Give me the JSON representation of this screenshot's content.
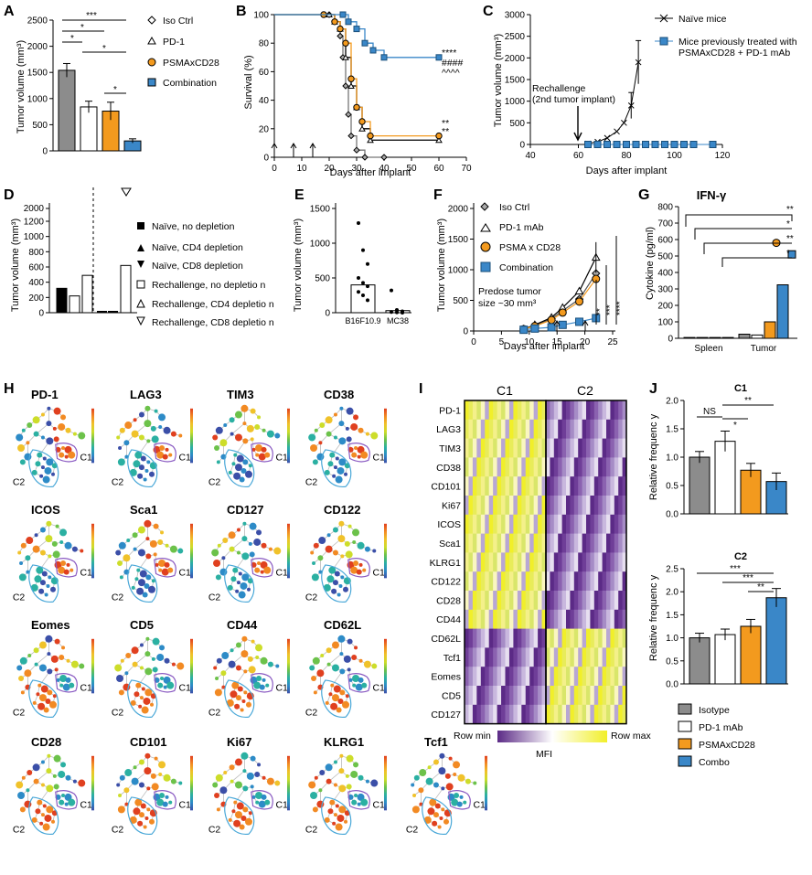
{
  "panels": {
    "A": {
      "letter": "A",
      "ylabel": "Tumor volume (mm³)",
      "yticks": [
        "0",
        "500",
        "1000",
        "1500",
        "2000",
        "2500"
      ],
      "legend": [
        "Iso Ctrl",
        "PD-1",
        "PSMAxCD28",
        "Combination"
      ],
      "sig": [
        "***",
        "*",
        "*",
        "*",
        "*"
      ]
    },
    "B": {
      "letter": "B",
      "ylabel": "Survival (%)",
      "xlabel": "Days after implant",
      "xticks": [
        "0",
        "10",
        "20",
        "30",
        "40",
        "50",
        "60",
        "70"
      ],
      "yticks": [
        "0",
        "20",
        "40",
        "60",
        "80",
        "100"
      ],
      "sig": [
        "****",
        "####",
        "^^^^",
        "**",
        "**"
      ]
    },
    "C": {
      "letter": "C",
      "ylabel": "Tumor volume (mm³)",
      "xlabel": "Days after implant",
      "xticks": [
        "40",
        "60",
        "80",
        "100",
        "120"
      ],
      "yticks": [
        "0",
        "500",
        "1000",
        "1500",
        "2000",
        "2500",
        "3000"
      ],
      "legend": [
        "Naïve mice",
        "Mice previously treated with",
        "PSMAxCD28 + PD-1 mAb"
      ],
      "annotation": [
        "Rechallenge",
        "(2nd tumor implant)"
      ]
    },
    "D": {
      "letter": "D",
      "ylabel": "Tumor volume (mm³)",
      "yticks": [
        "0",
        "200",
        "400",
        "600",
        "800",
        "1000",
        "1200",
        "2000"
      ],
      "legend": [
        "Naïve, no depletion",
        "Naïve, CD4 depletion",
        "Naïve, CD8 depletion",
        "Rechallenge, no depletio n",
        "Rechallenge, CD4 depletio n",
        "Rechallenge, CD8 depletio n"
      ]
    },
    "E": {
      "letter": "E",
      "ylabel": "Tumor volume (mm³)",
      "yticks": [
        "0",
        "500",
        "1000",
        "1500"
      ],
      "categories": [
        "B16F10.9",
        "MC38"
      ]
    },
    "F": {
      "letter": "F",
      "ylabel": "Tumor volume (mm³)",
      "xlabel": "Days after implant",
      "xticks": [
        "0",
        "5",
        "10",
        "15",
        "20",
        "25"
      ],
      "yticks": [
        "0",
        "500",
        "1000",
        "1500",
        "2000"
      ],
      "legend": [
        "Iso Ctrl",
        "PD-1 mAb",
        "PSMA x CD28",
        "Combination"
      ],
      "annotation": [
        "Predose tumor",
        "size ~30 mm³"
      ],
      "sig": [
        "**",
        "***",
        "****"
      ]
    },
    "G": {
      "letter": "G",
      "title": "IFN-γ",
      "ylabel": "Cytokine (pg/ml)",
      "yticks": [
        "0",
        "100",
        "200",
        "300",
        "400",
        "500",
        "600",
        "700",
        "800"
      ],
      "categories": [
        "Spleen",
        "Tumor"
      ],
      "sig": [
        "**",
        "*",
        "**",
        "*"
      ]
    },
    "H": {
      "letter": "H",
      "markers": [
        "PD-1",
        "LAG3",
        "TIM3",
        "CD38",
        "ICOS",
        "Sca1",
        "CD127",
        "CD122",
        "Eomes",
        "CD5",
        "CD44",
        "CD62L",
        "CD28",
        "CD101",
        "Ki67",
        "KLRG1",
        "Tcf1"
      ],
      "cluster_labels": [
        "C1",
        "C2"
      ]
    },
    "I": {
      "letter": "I",
      "columns": [
        "C1",
        "C2"
      ],
      "rows": [
        "PD-1",
        "LAG3",
        "TIM3",
        "CD38",
        "CD101",
        "Ki67",
        "ICOS",
        "Sca1",
        "KLRG1",
        "CD122",
        "CD28",
        "CD44",
        "CD62L",
        "Tcf1",
        "Eomes",
        "CD5",
        "CD127"
      ],
      "scale_min": "Row min",
      "scale_max": "Row max",
      "scale_label": "MFI"
    },
    "J": {
      "letter": "J",
      "title_top": "C1",
      "title_bottom": "C2",
      "ylabel": "Relative frequenc y",
      "yticks_top": [
        "0.0",
        "0.5",
        "1.0",
        "1.5",
        "2.0"
      ],
      "yticks_bottom": [
        "0.0",
        "0.5",
        "1.0",
        "1.5",
        "2.0",
        "2.5"
      ],
      "sig_top": [
        "NS",
        "*",
        "**"
      ],
      "sig_bottom": [
        "***",
        "***",
        "**"
      ],
      "legend": [
        "Isotype",
        "PD-1 mAb",
        "PSMAxCD28",
        "Combo"
      ]
    }
  },
  "colors": {
    "isotype": "#8c8c8c",
    "pd1": "#ffffff",
    "psma": "#f39a1e",
    "combo": "#3a87c8",
    "purple": "#5b2a86",
    "yellow": "#f1ef2a"
  },
  "chart_data": [
    {
      "panel": "A",
      "type": "bar",
      "categories": [
        "Iso Ctrl",
        "PD-1",
        "PSMAxCD28",
        "Combination"
      ],
      "values": [
        1540,
        840,
        760,
        190
      ],
      "errors": [
        130,
        110,
        170,
        40
      ],
      "ylim": [
        0,
        2500
      ]
    },
    {
      "panel": "B",
      "type": "line",
      "xlabel": "Days after implant",
      "ylabel": "Survival (%)",
      "xlim": [
        0,
        70
      ],
      "ylim": [
        0,
        100
      ],
      "series": [
        {
          "name": "Iso Ctrl",
          "points": [
            [
              0,
              100
            ],
            [
              20,
              100
            ],
            [
              22,
              95
            ],
            [
              24,
              85
            ],
            [
              25,
              70
            ],
            [
              26,
              50
            ],
            [
              27,
              30
            ],
            [
              28,
              15
            ],
            [
              30,
              5
            ],
            [
              33,
              0
            ],
            [
              40,
              0
            ]
          ]
        },
        {
          "name": "PD-1",
          "points": [
            [
              0,
              100
            ],
            [
              20,
              100
            ],
            [
              22,
              95
            ],
            [
              24,
              90
            ],
            [
              26,
              70
            ],
            [
              28,
              50
            ],
            [
              30,
              35
            ],
            [
              32,
              20
            ],
            [
              35,
              12
            ],
            [
              60,
              12
            ]
          ]
        },
        {
          "name": "PSMAxCD28",
          "points": [
            [
              0,
              100
            ],
            [
              18,
              100
            ],
            [
              22,
              95
            ],
            [
              24,
              90
            ],
            [
              26,
              80
            ],
            [
              28,
              55
            ],
            [
              30,
              35
            ],
            [
              32,
              25
            ],
            [
              35,
              15
            ],
            [
              60,
              15
            ]
          ]
        },
        {
          "name": "Combination",
          "points": [
            [
              0,
              100
            ],
            [
              25,
              100
            ],
            [
              27,
              95
            ],
            [
              30,
              90
            ],
            [
              33,
              80
            ],
            [
              36,
              75
            ],
            [
              40,
              70
            ],
            [
              60,
              70
            ]
          ]
        }
      ]
    },
    {
      "panel": "C",
      "type": "line",
      "xlabel": "Days after implant",
      "ylabel": "Tumor volume (mm³)",
      "xlim": [
        40,
        120
      ],
      "ylim": [
        0,
        3000
      ],
      "series": [
        {
          "name": "Naïve mice",
          "points": [
            [
              64,
              20
            ],
            [
              68,
              60
            ],
            [
              72,
              150
            ],
            [
              76,
              300
            ],
            [
              79,
              500
            ],
            [
              82,
              900
            ],
            [
              85,
              1900
            ]
          ]
        },
        {
          "name": "Mice previously treated with PSMAxCD28 + PD-1 mAb",
          "points": [
            [
              64,
              0
            ],
            [
              68,
              0
            ],
            [
              72,
              0
            ],
            [
              76,
              0
            ],
            [
              80,
              0
            ],
            [
              84,
              0
            ],
            [
              88,
              0
            ],
            [
              92,
              0
            ],
            [
              96,
              0
            ],
            [
              100,
              0
            ],
            [
              104,
              0
            ],
            [
              108,
              0
            ],
            [
              116,
              0
            ]
          ]
        }
      ]
    },
    {
      "panel": "D",
      "type": "bar",
      "categories": [
        "Naïve, no depletion",
        "Naïve, CD4 depletion",
        "Naïve, CD8 depletion",
        "Rechallenge, no depletio n",
        "Rechallenge, CD4 depletio n",
        "Rechallenge, CD8 depletio n"
      ],
      "values": [
        320,
        220,
        490,
        0,
        0,
        620
      ]
    },
    {
      "panel": "E",
      "type": "bar",
      "categories": [
        "B16F10.9",
        "MC38"
      ],
      "values": [
        400,
        30
      ]
    },
    {
      "panel": "F",
      "type": "line",
      "xlabel": "Days after implant",
      "ylabel": "Tumor volume (mm³)",
      "xlim": [
        0,
        25
      ],
      "ylim": [
        0,
        2000
      ],
      "series": [
        {
          "name": "Iso Ctrl",
          "points": [
            [
              9,
              30
            ],
            [
              11,
              90
            ],
            [
              14,
              200
            ],
            [
              16,
              330
            ],
            [
              19,
              520
            ],
            [
              22,
              940
            ]
          ]
        },
        {
          "name": "PD-1 mAb",
          "points": [
            [
              9,
              30
            ],
            [
              11,
              100
            ],
            [
              14,
              220
            ],
            [
              16,
              380
            ],
            [
              19,
              650
            ],
            [
              22,
              1200
            ]
          ]
        },
        {
          "name": "PSMA x CD28",
          "points": [
            [
              9,
              30
            ],
            [
              11,
              80
            ],
            [
              14,
              180
            ],
            [
              16,
              300
            ],
            [
              19,
              480
            ],
            [
              22,
              850
            ]
          ]
        },
        {
          "name": "Combination",
          "points": [
            [
              9,
              20
            ],
            [
              11,
              40
            ],
            [
              14,
              60
            ],
            [
              16,
              100
            ],
            [
              19,
              150
            ],
            [
              22,
              210
            ]
          ]
        }
      ]
    },
    {
      "panel": "G",
      "type": "bar",
      "title": "IFN-γ",
      "categories": [
        "Spleen",
        "Tumor"
      ],
      "series": [
        {
          "name": "Iso Ctrl",
          "values": [
            5,
            25
          ]
        },
        {
          "name": "PD-1",
          "values": [
            5,
            20
          ]
        },
        {
          "name": "PSMAxCD28",
          "values": [
            5,
            100
          ]
        },
        {
          "name": "Combination",
          "values": [
            5,
            325
          ]
        }
      ],
      "ylim": [
        0,
        800
      ]
    },
    {
      "panel": "J",
      "type": "bar",
      "title": "C1",
      "categories": [
        "Isotype",
        "PD-1 mAb",
        "PSMAxCD28",
        "Combo"
      ],
      "values": [
        1.0,
        1.28,
        0.77,
        0.57
      ],
      "errors": [
        0.1,
        0.18,
        0.12,
        0.15
      ],
      "ylim": [
        0,
        2.0
      ]
    },
    {
      "panel": "J",
      "type": "bar",
      "title": "C2",
      "categories": [
        "Isotype",
        "PD-1 mAb",
        "PSMAxCD28",
        "Combo"
      ],
      "values": [
        1.0,
        1.07,
        1.25,
        1.87
      ],
      "errors": [
        0.1,
        0.12,
        0.15,
        0.2
      ],
      "ylim": [
        0,
        2.5
      ]
    }
  ]
}
